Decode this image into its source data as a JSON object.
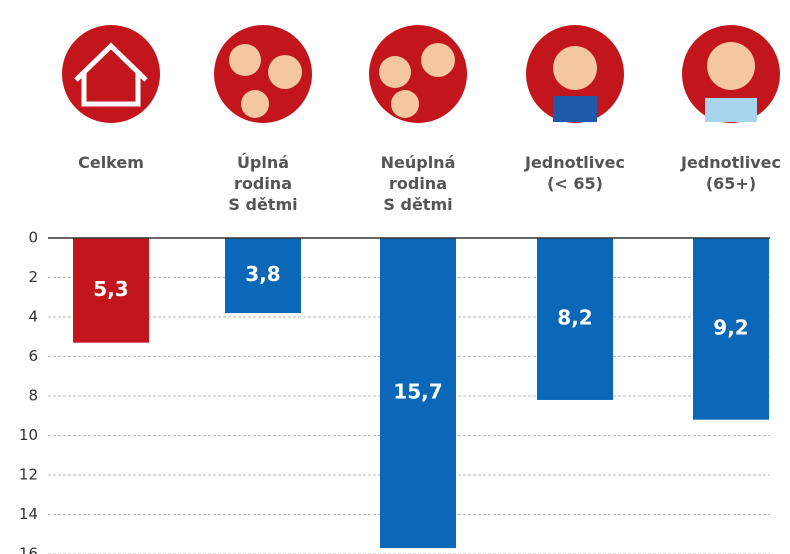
{
  "chart_data": {
    "type": "bar",
    "categories": [
      "Celkem",
      "Úplná\nrodina\nS dětmi",
      "Neúplná\nrodina\nS dětmi",
      "Jednotlivec\n(< 65)",
      "Jednotlivec\n(65+)"
    ],
    "values": [
      5.3,
      3.8,
      15.7,
      8.2,
      9.2
    ],
    "value_labels": [
      "5,3",
      "3,8",
      "15,7",
      "8,2",
      "9,2"
    ],
    "colors": [
      "#c3161c",
      "#0b67b7",
      "#0b67b7",
      "#0b67b7",
      "#0b67b7"
    ],
    "ylim": [
      0,
      16
    ],
    "yticks": [
      0,
      2,
      4,
      6,
      8,
      10,
      12,
      14,
      16
    ],
    "y_inverted": true,
    "grid": true
  }
}
